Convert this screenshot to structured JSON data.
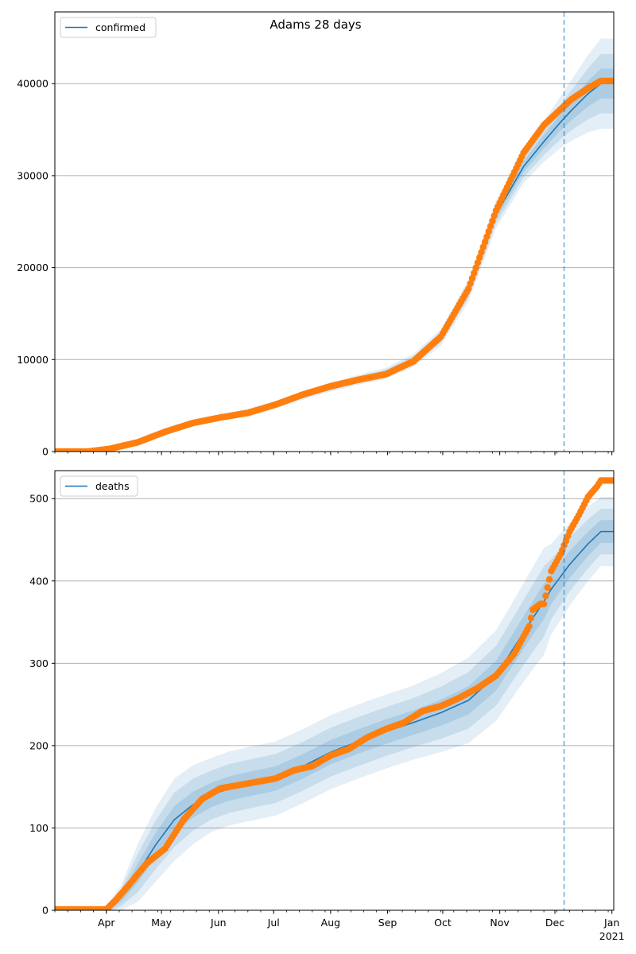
{
  "colors": {
    "line": "#1f77b4",
    "band": "#1f77b4",
    "points": "#ff7f0e",
    "vline": "#1f77b4",
    "grid": "#b0b0b0"
  },
  "chart_data": [
    {
      "type": "line",
      "title": "Adams 28 days",
      "legend": "confirmed",
      "legend_loc": "upper-left",
      "ylim": [
        0,
        47800
      ],
      "yticks": [
        "0",
        "10000",
        "20000",
        "30000",
        "40000"
      ],
      "ytick_values": [
        0,
        10000,
        20000,
        30000,
        40000
      ],
      "grid": "y",
      "vline_date": "2020-12-06",
      "x_tick_labels_shown": false,
      "model_knots": {
        "day": [
          0,
          18,
          30,
          45,
          60,
          75,
          90,
          105,
          120,
          135,
          150,
          165,
          180,
          195,
          210,
          225,
          240,
          255,
          266,
          275,
          281,
          290,
          297
        ],
        "median": [
          0,
          0,
          200,
          950,
          2100,
          3050,
          3700,
          4300,
          5100,
          6100,
          7000,
          7800,
          8500,
          9900,
          12400,
          17500,
          25800,
          31000,
          33700,
          35800,
          37100,
          38900,
          40000
        ],
        "halfwidth": [
          0,
          0,
          60,
          150,
          250,
          300,
          320,
          350,
          400,
          450,
          500,
          550,
          600,
          700,
          900,
          1200,
          1500,
          1800,
          2200,
          2800,
          3300,
          4200,
          4900
        ]
      },
      "observed_knots": {
        "day": [
          0,
          18,
          30,
          45,
          60,
          75,
          90,
          105,
          120,
          135,
          150,
          165,
          180,
          195,
          210,
          225,
          240,
          255,
          266,
          275,
          281,
          290,
          297
        ],
        "value": [
          0,
          0,
          300,
          1000,
          2150,
          3100,
          3700,
          4200,
          5100,
          6200,
          7100,
          7800,
          8400,
          9800,
          12500,
          17700,
          26200,
          32500,
          35500,
          37200,
          38300,
          39500,
          40300
        ]
      }
    },
    {
      "type": "line",
      "legend": "deaths",
      "legend_loc": "upper-left",
      "ylim": [
        0,
        534
      ],
      "yticks": [
        "0",
        "100",
        "200",
        "300",
        "400",
        "500"
      ],
      "ytick_values": [
        0,
        100,
        200,
        300,
        400,
        500
      ],
      "grid": "y",
      "vline_date": "2020-12-06",
      "x_tick_labels": [
        "Apr",
        "May",
        "Jun",
        "Jul",
        "Aug",
        "Sep",
        "Oct",
        "Nov",
        "Dec",
        "Jan"
      ],
      "x_tick_dates": [
        "2020-04-01",
        "2020-05-01",
        "2020-06-01",
        "2020-07-01",
        "2020-08-01",
        "2020-09-01",
        "2020-10-01",
        "2020-11-01",
        "2020-12-01",
        "2021-01-01"
      ],
      "x_year_label": "2021",
      "x_range": [
        "2020-03-04",
        "2021-01-02"
      ],
      "model_knots": {
        "day": [
          0,
          28,
          36,
          45,
          55,
          65,
          75,
          85,
          95,
          105,
          120,
          135,
          150,
          165,
          180,
          195,
          210,
          225,
          240,
          250,
          260,
          266,
          270,
          280,
          290,
          297
        ],
        "median": [
          0,
          0,
          15,
          45,
          80,
          110,
          128,
          140,
          148,
          153,
          160,
          175,
          192,
          205,
          217,
          228,
          240,
          255,
          285,
          320,
          355,
          375,
          390,
          420,
          445,
          460
        ],
        "halfwidth": [
          5,
          5,
          15,
          35,
          45,
          50,
          48,
          45,
          45,
          45,
          45,
          45,
          45,
          45,
          45,
          45,
          48,
          52,
          55,
          58,
          62,
          65,
          55,
          50,
          45,
          42
        ]
      },
      "observed_knots": {
        "day": [
          0,
          28,
          33,
          40,
          50,
          60,
          70,
          80,
          90,
          100,
          110,
          120,
          130,
          140,
          150,
          160,
          170,
          180,
          190,
          200,
          210,
          220,
          230,
          240,
          250,
          258,
          260,
          264,
          266,
          270,
          275,
          280,
          285,
          290,
          295,
          297
        ],
        "value": [
          1,
          1,
          12,
          30,
          57,
          75,
          110,
          135,
          148,
          152,
          156,
          160,
          170,
          175,
          188,
          196,
          210,
          220,
          228,
          242,
          248,
          258,
          270,
          285,
          312,
          345,
          365,
          372,
          372,
          412,
          432,
          460,
          480,
          502,
          515,
          522
        ]
      }
    }
  ]
}
